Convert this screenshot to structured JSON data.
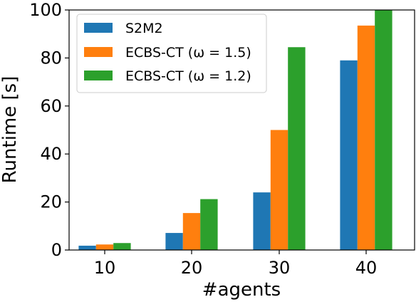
{
  "chart_data": {
    "type": "bar",
    "categories": [
      "10",
      "20",
      "30",
      "40"
    ],
    "series": [
      {
        "name": "S2M2",
        "color": "#1f77b4",
        "values": [
          1.8,
          7.1,
          24.0,
          79.0
        ]
      },
      {
        "name": "ECBS-CT (ω = 1.5)",
        "color": "#ff7f0e",
        "values": [
          2.3,
          15.4,
          50.0,
          93.5
        ]
      },
      {
        "name": "ECBS-CT (ω = 1.2)",
        "color": "#2ca02c",
        "values": [
          2.9,
          21.2,
          84.5,
          100.0
        ]
      }
    ],
    "xlabel": "#agents",
    "ylabel": "Runtime [s]",
    "ylim": [
      0,
      100
    ],
    "yticks": [
      "0",
      "20",
      "40",
      "60",
      "80",
      "100"
    ],
    "legend_position": "top-left",
    "grid": false
  }
}
